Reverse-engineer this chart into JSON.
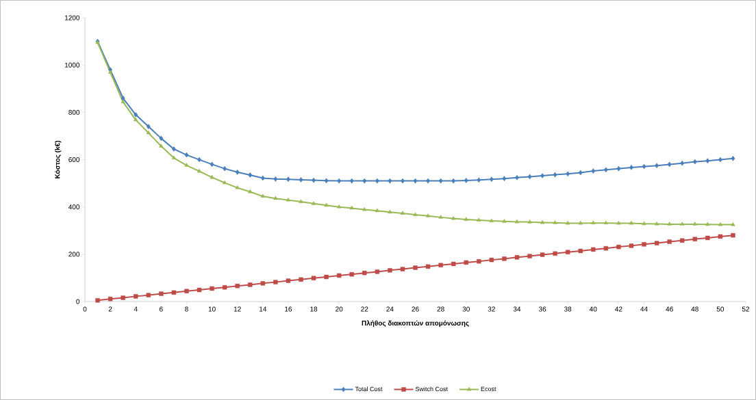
{
  "chart_data": {
    "type": "line",
    "xlabel": "Πλήθος διακοπτών απομόνωσης",
    "ylabel": "Κόστος (k€)",
    "x": [
      1,
      2,
      3,
      4,
      5,
      6,
      7,
      8,
      9,
      10,
      11,
      12,
      13,
      14,
      15,
      16,
      17,
      18,
      19,
      20,
      21,
      22,
      23,
      24,
      25,
      26,
      27,
      28,
      29,
      30,
      31,
      32,
      33,
      34,
      35,
      36,
      37,
      38,
      39,
      40,
      41,
      42,
      43,
      44,
      45,
      46,
      47,
      48,
      49,
      50,
      51
    ],
    "xlim": [
      0,
      52
    ],
    "xticks": [
      0,
      2,
      4,
      6,
      8,
      10,
      12,
      14,
      16,
      18,
      20,
      22,
      24,
      26,
      28,
      30,
      32,
      34,
      36,
      38,
      40,
      42,
      44,
      46,
      48,
      50,
      52
    ],
    "ylim": [
      0,
      1200
    ],
    "yticks": [
      0,
      200,
      400,
      600,
      800,
      1000,
      1200
    ],
    "grid": false,
    "legend": "bottom",
    "line_style": "solid",
    "series": [
      {
        "name": "Total Cost",
        "color": "#4a7ebb",
        "marker": "diamond",
        "values": [
          1100,
          980,
          860,
          790,
          740,
          690,
          645,
          620,
          600,
          580,
          562,
          547,
          535,
          522,
          518,
          517,
          515,
          513,
          511,
          510,
          510,
          510,
          510,
          510,
          510,
          510,
          510,
          510,
          510,
          512,
          514,
          517,
          520,
          524,
          528,
          532,
          536,
          540,
          545,
          552,
          557,
          562,
          567,
          571,
          575,
          580,
          585,
          591,
          595,
          600,
          605
        ]
      },
      {
        "name": "Switch Cost",
        "color": "#be4b48",
        "marker": "square",
        "values": [
          5,
          11,
          16,
          22,
          27,
          33,
          38,
          44,
          49,
          55,
          60,
          66,
          71,
          77,
          82,
          88,
          93,
          99,
          104,
          110,
          115,
          121,
          126,
          132,
          137,
          143,
          148,
          154,
          159,
          165,
          170,
          176,
          181,
          187,
          192,
          198,
          203,
          209,
          214,
          220,
          225,
          231,
          236,
          242,
          247,
          253,
          258,
          264,
          269,
          275,
          280
        ]
      },
      {
        "name": "Ecost",
        "color": "#98b954",
        "marker": "triangle",
        "values": [
          1095,
          969,
          844,
          768,
          713,
          657,
          607,
          576,
          551,
          525,
          502,
          481,
          464,
          445,
          436,
          429,
          422,
          414,
          407,
          400,
          395,
          389,
          384,
          378,
          373,
          367,
          362,
          356,
          351,
          347,
          344,
          341,
          339,
          337,
          336,
          334,
          333,
          331,
          331,
          332,
          332,
          331,
          331,
          329,
          328,
          327,
          327,
          327,
          326,
          325,
          325
        ]
      }
    ]
  }
}
